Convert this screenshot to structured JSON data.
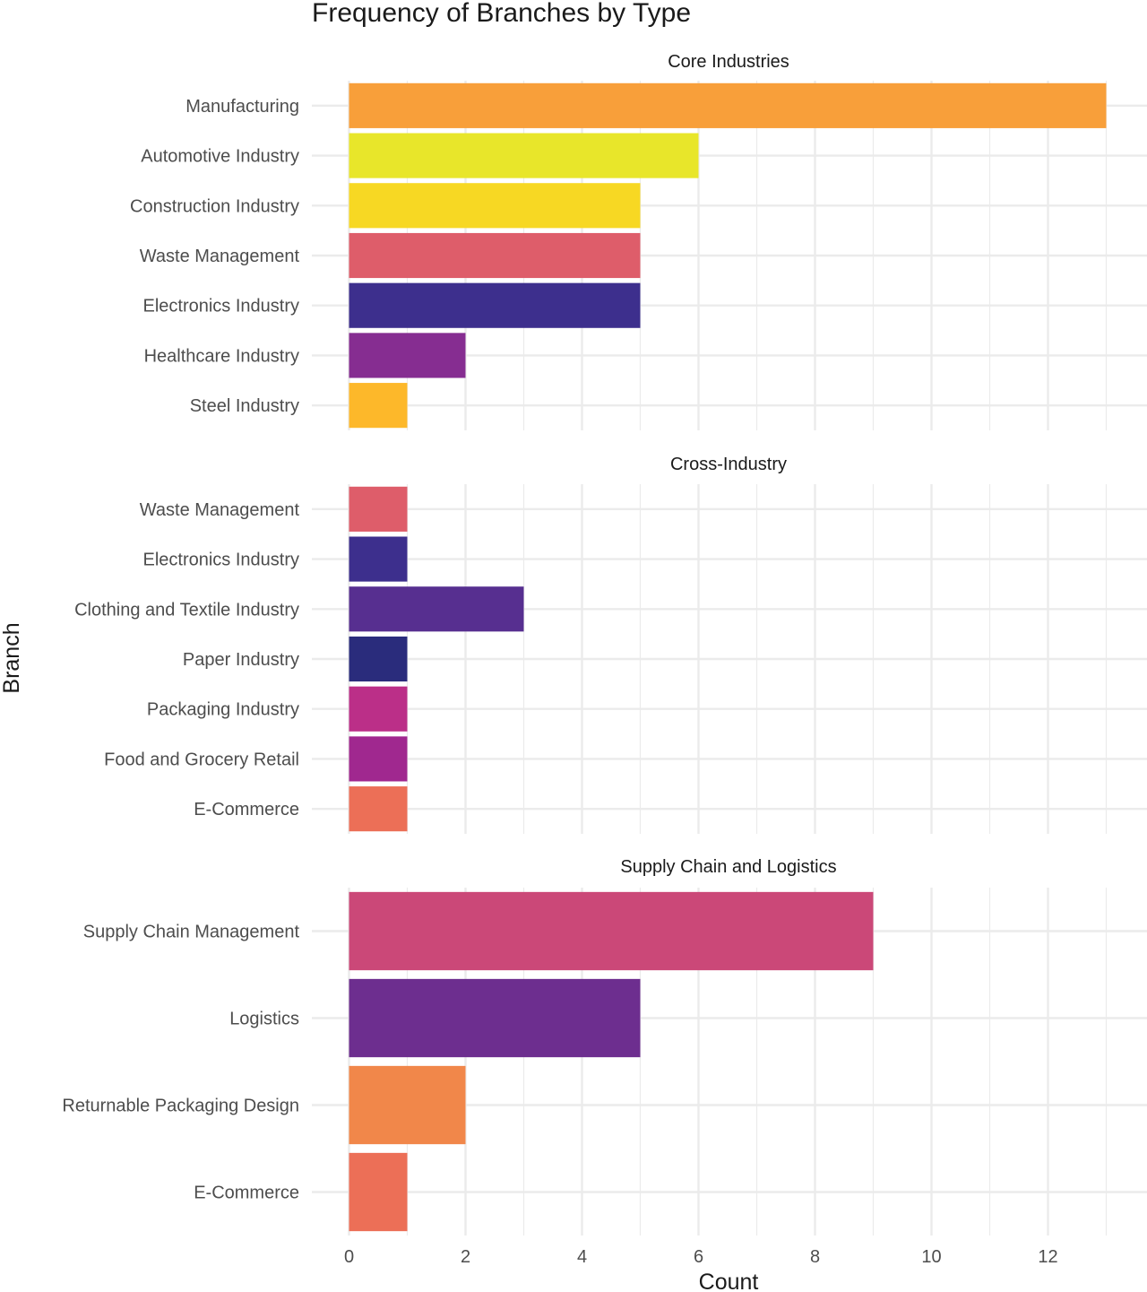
{
  "chart_data": {
    "type": "bar",
    "orientation": "horizontal",
    "faceted": true,
    "title": "Frequency of Branches by Type",
    "xlabel": "Count",
    "ylabel": "Branch",
    "xlim": [
      0,
      13.5
    ],
    "x_ticks": [
      0,
      2,
      4,
      6,
      8,
      10,
      12
    ],
    "x_tick_labels": [
      "0",
      "2",
      "4",
      "6",
      "8",
      "10",
      "12"
    ],
    "grid": true,
    "legend": "none",
    "panels": [
      {
        "title": "Core Industries",
        "categories": [
          "Manufacturing",
          "Automotive Industry",
          "Construction Industry",
          "Waste Management",
          "Electronics Industry",
          "Healthcare Industry",
          "Steel Industry"
        ],
        "values": [
          13,
          6,
          5,
          5,
          5,
          2,
          1
        ],
        "colors": [
          "#F89F3A",
          "#E8E62A",
          "#F7D823",
          "#DE5D6A",
          "#3D2F8D",
          "#862D91",
          "#FDB82A"
        ]
      },
      {
        "title": "Cross-Industry",
        "categories": [
          "Waste Management",
          "Electronics Industry",
          "Clothing and Textile Industry",
          "Paper Industry",
          "Packaging Industry",
          "Food and Grocery Retail",
          "E-Commerce"
        ],
        "values": [
          1,
          1,
          3,
          1,
          1,
          1,
          1
        ],
        "colors": [
          "#DE5D6A",
          "#3D2F8D",
          "#572F90",
          "#2A2C7C",
          "#BB2F88",
          "#A0288F",
          "#EC6F57"
        ]
      },
      {
        "title": "Supply Chain and Logistics",
        "categories": [
          "Supply Chain Management",
          "Logistics",
          "Returnable Packaging Design",
          "E-Commerce"
        ],
        "values": [
          9,
          5,
          2,
          1
        ],
        "colors": [
          "#CB4878",
          "#6D2E8F",
          "#F1874A",
          "#EC6F57"
        ]
      }
    ]
  }
}
